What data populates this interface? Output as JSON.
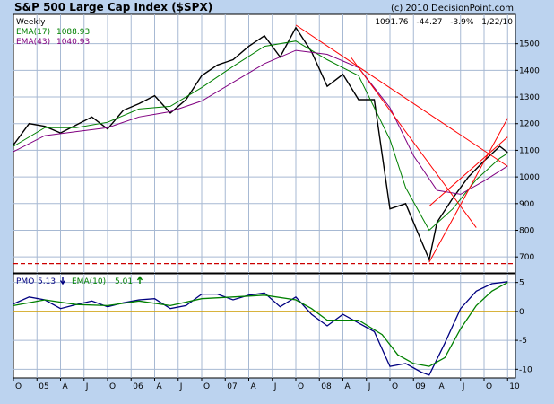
{
  "colors": {
    "background": "#bcd3ef",
    "panel": "#ffffff",
    "grid": "#a7b9d3",
    "price": "#000000",
    "ema_short": "#008000",
    "ema_long": "#800080",
    "trendline": "#ff0000",
    "support": "#cc0000",
    "pmo": "#000080",
    "pmo_signal": "#008000",
    "zero_line": "#d2a000",
    "text": "#000000"
  },
  "header": {
    "title": "S&P 500 Large Cap Index ($SPX)",
    "copyright": "(c) 2010 DecisionPoint.com",
    "period": "Weekly",
    "ema_short_label": "EMA(17)",
    "ema_short_value": "1088.93",
    "ema_long_label": "EMA(43)",
    "ema_long_value": "1040.93",
    "last_close": "1091.76",
    "change": "-44.27",
    "change_pct": "-3.9%",
    "date": "1/22/10"
  },
  "pmo_header": {
    "pmo_label": "PMO",
    "pmo_value": "5.13",
    "pmo_arrow": "down",
    "signal_label": "EMA(10)",
    "signal_value": "5.01",
    "signal_arrow": "up"
  },
  "chart_data": [
    {
      "type": "line",
      "title": "S&P 500 Large Cap Index ($SPX)",
      "subtitle": "Weekly",
      "x_tick_labels": [
        "O",
        "05",
        "A",
        "J",
        "O",
        "06",
        "A",
        "J",
        "O",
        "07",
        "A",
        "J",
        "O",
        "08",
        "A",
        "J",
        "O",
        "09",
        "A",
        "J",
        "O",
        "10"
      ],
      "y_ticks": [
        700,
        800,
        900,
        1000,
        1100,
        1200,
        1300,
        1400,
        1500
      ],
      "ylim": [
        640,
        1610
      ],
      "grid": true,
      "series": [
        {
          "name": "Price",
          "x": [
            "2004-10",
            "2004-12",
            "2005-02",
            "2005-04",
            "2005-06",
            "2005-08",
            "2005-10",
            "2005-12",
            "2006-02",
            "2006-04",
            "2006-06",
            "2006-08",
            "2006-10",
            "2006-12",
            "2007-02",
            "2007-04",
            "2007-06",
            "2007-08",
            "2007-10",
            "2007-12",
            "2008-02",
            "2008-04",
            "2008-06",
            "2008-08",
            "2008-10",
            "2008-12",
            "2009-02",
            "2009-03",
            "2009-04",
            "2009-06",
            "2009-08",
            "2009-10",
            "2009-12",
            "2010-01"
          ],
          "values": [
            1120,
            1200,
            1190,
            1165,
            1195,
            1225,
            1180,
            1250,
            1275,
            1305,
            1240,
            1290,
            1380,
            1420,
            1440,
            1490,
            1530,
            1450,
            1560,
            1470,
            1340,
            1385,
            1290,
            1290,
            880,
            900,
            760,
            690,
            830,
            920,
            1000,
            1060,
            1115,
            1092
          ]
        },
        {
          "name": "EMA(17)",
          "x": [
            "2004-10",
            "2005-02",
            "2005-06",
            "2005-10",
            "2006-02",
            "2006-06",
            "2006-10",
            "2007-02",
            "2007-06",
            "2007-10",
            "2008-02",
            "2008-06",
            "2008-10",
            "2008-12",
            "2009-03",
            "2009-06",
            "2009-09",
            "2009-12",
            "2010-01"
          ],
          "values": [
            1115,
            1185,
            1185,
            1205,
            1255,
            1265,
            1335,
            1415,
            1490,
            1510,
            1440,
            1380,
            1140,
            960,
            800,
            880,
            990,
            1070,
            1089
          ]
        },
        {
          "name": "EMA(43)",
          "x": [
            "2004-10",
            "2005-02",
            "2005-06",
            "2005-10",
            "2006-02",
            "2006-06",
            "2006-10",
            "2007-02",
            "2007-06",
            "2007-10",
            "2008-02",
            "2008-06",
            "2008-10",
            "2009-01",
            "2009-04",
            "2009-07",
            "2009-10",
            "2010-01"
          ],
          "values": [
            1095,
            1155,
            1170,
            1185,
            1225,
            1245,
            1285,
            1355,
            1425,
            1475,
            1460,
            1410,
            1260,
            1080,
            950,
            935,
            985,
            1041
          ]
        }
      ],
      "annotations": [
        {
          "type": "trendline",
          "from": [
            "2007-10",
            1570
          ],
          "to": [
            "2010-01",
            1040
          ]
        },
        {
          "type": "trendline",
          "from": [
            "2008-05",
            1450
          ],
          "to": [
            "2009-09",
            810
          ]
        },
        {
          "type": "trendline",
          "from": [
            "2009-03",
            680
          ],
          "to": [
            "2010-01",
            1220
          ]
        },
        {
          "type": "trendline",
          "from": [
            "2009-03",
            890
          ],
          "to": [
            "2010-01",
            1150
          ]
        },
        {
          "type": "support",
          "value": 675
        }
      ]
    },
    {
      "type": "line",
      "title": "PMO",
      "x_tick_labels": [
        "O",
        "05",
        "A",
        "J",
        "O",
        "06",
        "A",
        "J",
        "O",
        "07",
        "A",
        "J",
        "O",
        "08",
        "A",
        "J",
        "O",
        "09",
        "A",
        "J",
        "O",
        "10"
      ],
      "y_ticks": [
        5,
        0,
        -5,
        -10
      ],
      "ylim": [
        -11.5,
        6.5
      ],
      "grid": true,
      "series": [
        {
          "name": "PMO",
          "x": [
            "2004-10",
            "2004-12",
            "2005-02",
            "2005-04",
            "2005-06",
            "2005-08",
            "2005-10",
            "2005-12",
            "2006-02",
            "2006-04",
            "2006-06",
            "2006-08",
            "2006-10",
            "2006-12",
            "2007-02",
            "2007-04",
            "2007-06",
            "2007-08",
            "2007-10",
            "2007-12",
            "2008-02",
            "2008-04",
            "2008-06",
            "2008-08",
            "2008-10",
            "2008-12",
            "2009-02",
            "2009-03",
            "2009-05",
            "2009-07",
            "2009-09",
            "2009-11",
            "2010-01"
          ],
          "values": [
            1.3,
            2.5,
            2.0,
            0.5,
            1.2,
            1.8,
            0.8,
            1.5,
            2.0,
            2.2,
            0.5,
            1.0,
            3.0,
            3.0,
            2.0,
            2.8,
            3.2,
            0.8,
            2.5,
            -0.5,
            -2.5,
            -0.5,
            -2.0,
            -3.5,
            -9.5,
            -9.0,
            -10.5,
            -11.0,
            -5.5,
            0.5,
            3.5,
            4.8,
            5.13
          ]
        },
        {
          "name": "EMA(10)",
          "x": [
            "2004-10",
            "2005-02",
            "2005-06",
            "2005-10",
            "2006-02",
            "2006-06",
            "2006-10",
            "2007-02",
            "2007-06",
            "2007-10",
            "2007-12",
            "2008-02",
            "2008-06",
            "2008-09",
            "2008-11",
            "2009-01",
            "2009-03",
            "2009-05",
            "2009-07",
            "2009-09",
            "2009-11",
            "2010-01"
          ],
          "values": [
            1.0,
            2.0,
            1.2,
            1.0,
            1.8,
            1.0,
            2.2,
            2.5,
            2.8,
            2.0,
            0.5,
            -1.5,
            -1.5,
            -4.0,
            -7.5,
            -9.0,
            -9.5,
            -8.0,
            -3.0,
            1.0,
            3.5,
            5.01
          ]
        }
      ]
    }
  ]
}
